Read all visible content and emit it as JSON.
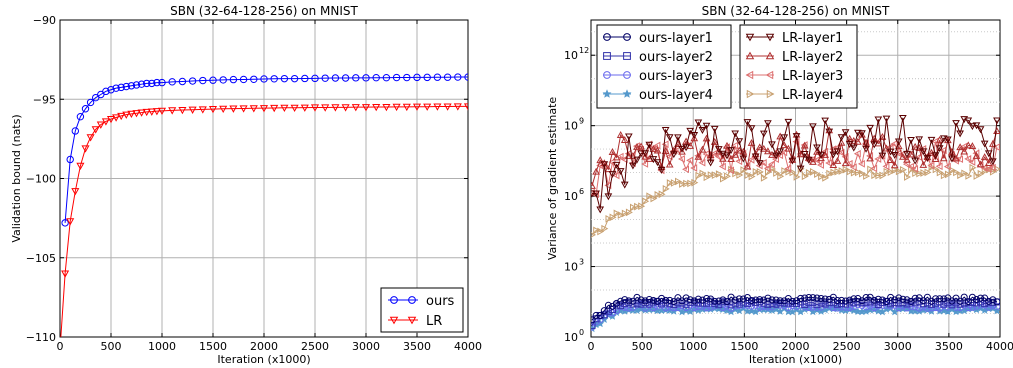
{
  "chart_data": [
    {
      "type": "line",
      "title": "SBN (32-64-128-256) on MNIST",
      "xlabel": "Iteration (x1000)",
      "ylabel": "Validation bound (nats)",
      "xlim": [
        0,
        4000
      ],
      "ylim": [
        -110,
        -90
      ],
      "xticks": [
        0,
        500,
        1000,
        1500,
        2000,
        2500,
        3000,
        3500,
        4000
      ],
      "yticks": [
        -110,
        -105,
        -100,
        -95,
        -90
      ],
      "grid": true,
      "legend_position": "lower-right",
      "series": [
        {
          "name": "ours",
          "color": "#0000ff",
          "marker": "circle",
          "x": [
            50,
            100,
            150,
            200,
            250,
            300,
            350,
            400,
            450,
            500,
            550,
            600,
            650,
            700,
            750,
            800,
            850,
            900,
            950,
            1000,
            1100,
            1200,
            1300,
            1400,
            1500,
            1600,
            1700,
            1800,
            1900,
            2000,
            2100,
            2200,
            2300,
            2400,
            2500,
            2600,
            2700,
            2800,
            2900,
            3000,
            3100,
            3200,
            3300,
            3400,
            3500,
            3600,
            3700,
            3800,
            3900,
            4000
          ],
          "y": [
            -102.8,
            -98.8,
            -97.0,
            -96.1,
            -95.6,
            -95.2,
            -94.9,
            -94.7,
            -94.5,
            -94.4,
            -94.3,
            -94.25,
            -94.2,
            -94.15,
            -94.1,
            -94.05,
            -94.0,
            -94.0,
            -93.95,
            -93.95,
            -93.9,
            -93.88,
            -93.85,
            -93.82,
            -93.8,
            -93.78,
            -93.76,
            -93.75,
            -93.74,
            -93.72,
            -93.71,
            -93.7,
            -93.7,
            -93.69,
            -93.68,
            -93.67,
            -93.66,
            -93.66,
            -93.65,
            -93.65,
            -93.64,
            -93.64,
            -93.63,
            -93.63,
            -93.62,
            -93.62,
            -93.61,
            -93.61,
            -93.6,
            -93.6
          ]
        },
        {
          "name": "LR",
          "color": "#ff0000",
          "marker": "triangle-down",
          "x": [
            0,
            50,
            100,
            150,
            200,
            250,
            300,
            350,
            400,
            450,
            500,
            550,
            600,
            650,
            700,
            750,
            800,
            850,
            900,
            950,
            1000,
            1100,
            1200,
            1300,
            1400,
            1500,
            1600,
            1700,
            1800,
            1900,
            2000,
            2100,
            2200,
            2300,
            2400,
            2500,
            2600,
            2700,
            2800,
            2900,
            3000,
            3100,
            3200,
            3300,
            3400,
            3500,
            3600,
            3700,
            3800,
            3900,
            4000
          ],
          "y": [
            -110.8,
            -106.0,
            -102.7,
            -100.8,
            -99.2,
            -98.1,
            -97.4,
            -96.9,
            -96.6,
            -96.4,
            -96.25,
            -96.15,
            -96.05,
            -95.97,
            -95.92,
            -95.88,
            -95.84,
            -95.8,
            -95.78,
            -95.75,
            -95.73,
            -95.7,
            -95.68,
            -95.66,
            -95.64,
            -95.62,
            -95.6,
            -95.59,
            -95.58,
            -95.57,
            -95.56,
            -95.55,
            -95.54,
            -95.54,
            -95.53,
            -95.52,
            -95.52,
            -95.51,
            -95.51,
            -95.5,
            -95.5,
            -95.49,
            -95.49,
            -95.48,
            -95.48,
            -95.47,
            -95.47,
            -95.46,
            -95.46,
            -95.45,
            -95.45
          ]
        }
      ]
    },
    {
      "type": "line",
      "title": "SBN (32-64-128-256) on MNIST",
      "xlabel": "Iteration (x1000)",
      "ylabel": "Variance of gradient estimate",
      "xlim": [
        0,
        4000
      ],
      "ylim_log10": [
        0,
        13.5
      ],
      "yscale": "log",
      "xticks": [
        0,
        500,
        1000,
        1500,
        2000,
        2500,
        3000,
        3500,
        4000
      ],
      "yticks_log10": [
        0,
        3,
        6,
        9,
        12
      ],
      "ytick_labels": [
        "10",
        "10",
        "10",
        "10",
        "10"
      ],
      "ytick_exponents": [
        "0",
        "3",
        "6",
        "9",
        "12"
      ],
      "grid": true,
      "legend_position": "top",
      "series": [
        {
          "name": "ours-layer1",
          "color": "#000066",
          "marker": "circle",
          "base": 1.6,
          "noise": 0.1,
          "start": 0.6,
          "ramp": 400
        },
        {
          "name": "ours-layer2",
          "color": "#3333aa",
          "marker": "square",
          "base": 1.45,
          "noise": 0.08,
          "start": 0.5,
          "ramp": 400
        },
        {
          "name": "ours-layer3",
          "color": "#6a6aee",
          "marker": "circle",
          "base": 1.3,
          "noise": 0.08,
          "start": 0.4,
          "ramp": 400
        },
        {
          "name": "ours-layer4",
          "color": "#5599cc",
          "marker": "star",
          "base": 1.15,
          "noise": 0.08,
          "start": 0.3,
          "ramp": 400
        },
        {
          "name": "LR-layer1",
          "color": "#5a0000",
          "marker": "triangle-down",
          "base": 8.2,
          "noise": 1.3,
          "start": 5.3,
          "ramp": 600
        },
        {
          "name": "LR-layer2",
          "color": "#b03030",
          "marker": "triangle-up",
          "base": 8.0,
          "noise": 0.9,
          "start": 7.0,
          "ramp": 400
        },
        {
          "name": "LR-layer3",
          "color": "#dd7070",
          "marker": "triangle-left",
          "base": 7.7,
          "noise": 0.7,
          "start": 6.3,
          "ramp": 500
        },
        {
          "name": "LR-layer4",
          "color": "#c8a070",
          "marker": "triangle-right",
          "base": 7.0,
          "noise": 0.25,
          "start": 4.3,
          "ramp": 1500
        }
      ]
    }
  ]
}
